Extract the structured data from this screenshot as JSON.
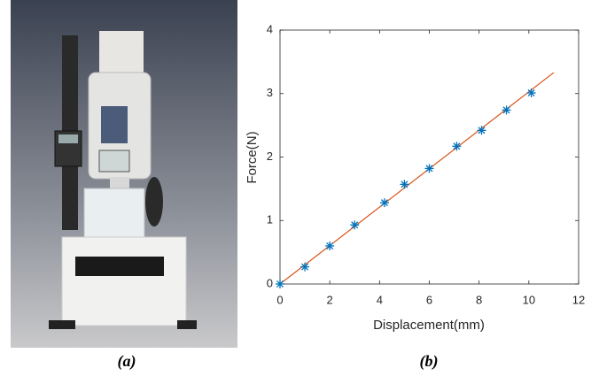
{
  "captions": [
    "(a)",
    "(b)"
  ],
  "chart_data": {
    "type": "scatter",
    "xlabel": "Displacement(mm)",
    "ylabel": "Force(N)",
    "xlim": [
      0,
      12
    ],
    "xticks": [
      0,
      2,
      4,
      6,
      8,
      10,
      12
    ],
    "ylim": [
      0,
      4
    ],
    "yticks": [
      0,
      1,
      2,
      3,
      4
    ],
    "grid": false,
    "series": [
      {
        "color": "#0072bd",
        "marker": "*",
        "x": [
          0,
          1,
          2,
          3,
          4.2,
          5,
          6,
          7.1,
          8.1,
          9.1,
          10.1
        ],
        "values": [
          0,
          0.27,
          0.6,
          0.93,
          1.28,
          1.57,
          1.82,
          2.17,
          2.42,
          2.74,
          3.01
        ]
      },
      {
        "color": "#d95319",
        "marker": "line",
        "x": [
          0,
          11
        ],
        "values": [
          0,
          3.33
        ]
      }
    ]
  }
}
